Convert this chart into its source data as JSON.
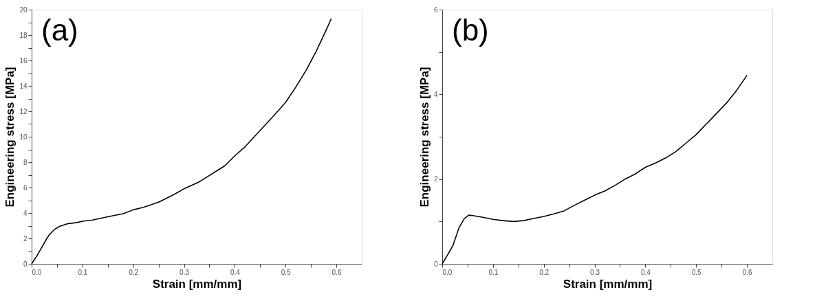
{
  "chart_data": [
    {
      "type": "line",
      "annotations": [
        "(a)"
      ],
      "xlabel": "Strain [mm/mm]",
      "ylabel": "Engineering stress [MPa]",
      "x": [
        0,
        0.01,
        0.02,
        0.03,
        0.035,
        0.045,
        0.055,
        0.07,
        0.09,
        0.1,
        0.12,
        0.15,
        0.18,
        0.2,
        0.22,
        0.25,
        0.28,
        0.3,
        0.33,
        0.36,
        0.38,
        0.4,
        0.42,
        0.45,
        0.48,
        0.5,
        0.52,
        0.54,
        0.56,
        0.58,
        0.59
      ],
      "series": [
        {
          "color": "#000000",
          "values": [
            0,
            0.6,
            1.3,
            2.0,
            2.3,
            2.7,
            2.95,
            3.15,
            3.25,
            3.35,
            3.45,
            3.7,
            3.95,
            4.25,
            4.45,
            4.85,
            5.45,
            5.9,
            6.45,
            7.2,
            7.7,
            8.5,
            9.2,
            10.5,
            11.8,
            12.7,
            13.9,
            15.2,
            16.7,
            18.4,
            19.3
          ]
        }
      ],
      "xlim": [
        0,
        0.65
      ],
      "ylim": [
        0,
        20
      ],
      "xticks": [
        {
          "value": 0,
          "label": "0.0"
        },
        {
          "value": 0.05,
          "label": null
        },
        0.1,
        {
          "value": 0.15,
          "label": null
        },
        0.2,
        {
          "value": 0.25,
          "label": null
        },
        0.3,
        {
          "value": 0.35,
          "label": null
        },
        0.4,
        {
          "value": 0.45,
          "label": null
        },
        0.5,
        {
          "value": 0.55,
          "label": null
        },
        0.6
      ],
      "yticks": [
        0,
        {
          "value": 1,
          "label": null
        },
        2,
        {
          "value": 3,
          "label": null
        },
        4,
        {
          "value": 5,
          "label": null
        },
        6,
        {
          "value": 7,
          "label": null
        },
        8,
        {
          "value": 9,
          "label": null
        },
        10,
        {
          "value": 11,
          "label": null
        },
        12,
        {
          "value": 13,
          "label": null
        },
        14,
        {
          "value": 15,
          "label": null
        },
        16,
        {
          "value": 17,
          "label": null
        },
        18,
        {
          "value": 19,
          "label": null
        },
        20
      ],
      "grid": false,
      "legend": false,
      "marker": "none",
      "line_style": "solid"
    },
    {
      "type": "line",
      "annotations": [
        "(b)"
      ],
      "xlabel": "Strain [mm/mm]",
      "ylabel": "Engineering stress [MPa]",
      "x": [
        0,
        0.01,
        0.021,
        0.033,
        0.043,
        0.052,
        0.06,
        0.08,
        0.1,
        0.12,
        0.14,
        0.16,
        0.18,
        0.2,
        0.22,
        0.24,
        0.26,
        0.28,
        0.3,
        0.32,
        0.34,
        0.36,
        0.38,
        0.4,
        0.42,
        0.44,
        0.46,
        0.48,
        0.5,
        0.52,
        0.54,
        0.56,
        0.58,
        0.6
      ],
      "series": [
        {
          "color": "#000000",
          "values": [
            0,
            0.2,
            0.43,
            0.85,
            1.06,
            1.15,
            1.14,
            1.1,
            1.05,
            1.02,
            1.0,
            1.02,
            1.07,
            1.12,
            1.18,
            1.25,
            1.38,
            1.5,
            1.62,
            1.72,
            1.85,
            2.0,
            2.12,
            2.28,
            2.38,
            2.5,
            2.65,
            2.85,
            3.05,
            3.3,
            3.55,
            3.8,
            4.1,
            4.45
          ]
        }
      ],
      "xlim": [
        0,
        0.65
      ],
      "ylim": [
        0,
        6
      ],
      "xticks": [
        {
          "value": 0,
          "label": "0.0"
        },
        {
          "value": 0.05,
          "label": null
        },
        0.1,
        {
          "value": 0.15,
          "label": null
        },
        0.2,
        {
          "value": 0.25,
          "label": null
        },
        0.3,
        {
          "value": 0.35,
          "label": null
        },
        0.4,
        {
          "value": 0.45,
          "label": null
        },
        0.5,
        {
          "value": 0.55,
          "label": null
        },
        0.6
      ],
      "yticks": [
        0,
        {
          "value": 1,
          "label": null
        },
        2,
        {
          "value": 3,
          "label": null
        },
        4,
        {
          "value": 5,
          "label": null
        },
        6
      ],
      "grid": false,
      "legend": false,
      "marker": "none",
      "line_style": "solid"
    }
  ]
}
